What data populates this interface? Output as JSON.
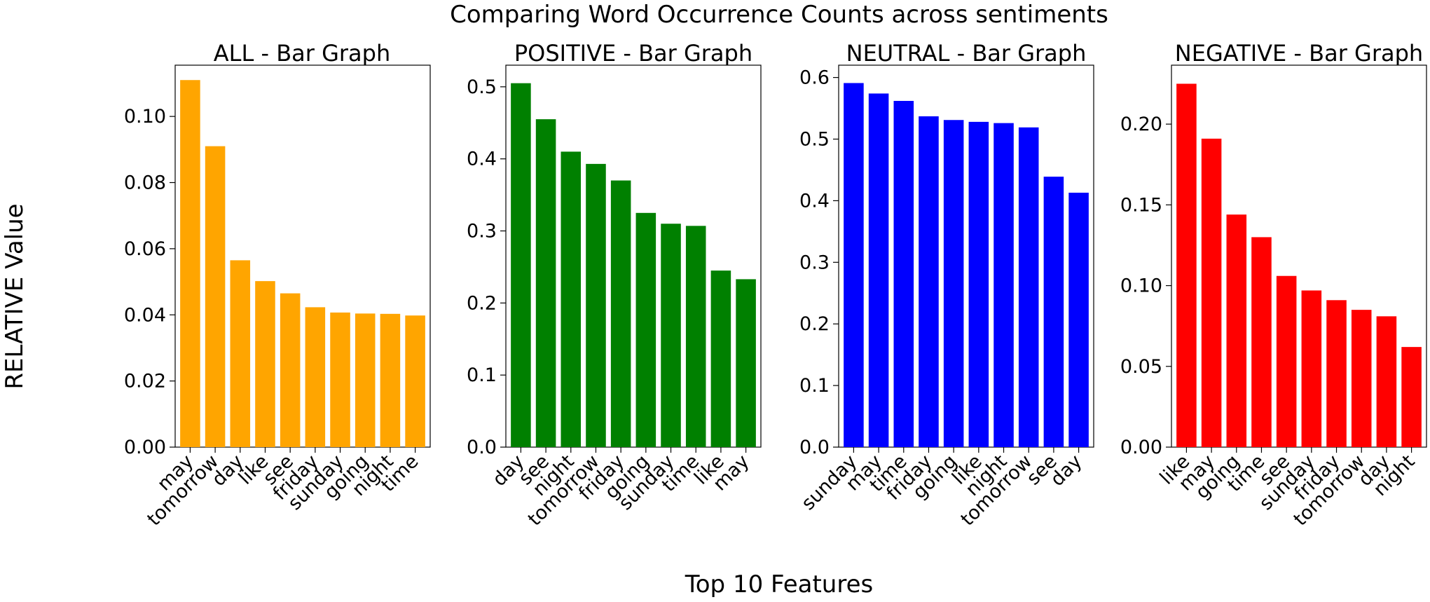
{
  "figure": {
    "suptitle": "Comparing Word Occurrence Counts across sentiments",
    "ylabel": "RELATIVE Value",
    "xlabel": "Top 10 Features"
  },
  "chart_data": [
    {
      "type": "bar",
      "title": "ALL - Bar Graph",
      "color": "#ffa500",
      "categories": [
        "may",
        "tomorrow",
        "day",
        "like",
        "see",
        "friday",
        "sunday",
        "going",
        "night",
        "time"
      ],
      "values": [
        0.111,
        0.091,
        0.0565,
        0.0502,
        0.0465,
        0.0423,
        0.0407,
        0.0404,
        0.0403,
        0.0398
      ],
      "ylim": [
        0,
        0.1155
      ],
      "yticks": [
        0.0,
        0.02,
        0.04,
        0.06,
        0.08,
        0.1
      ],
      "ytick_labels": [
        "0.00",
        "0.02",
        "0.04",
        "0.06",
        "0.08",
        "0.10"
      ]
    },
    {
      "type": "bar",
      "title": "POSITIVE - Bar Graph",
      "color": "#008000",
      "categories": [
        "day",
        "see",
        "night",
        "tomorrow",
        "friday",
        "going",
        "sunday",
        "time",
        "like",
        "may"
      ],
      "values": [
        0.505,
        0.455,
        0.41,
        0.393,
        0.37,
        0.325,
        0.31,
        0.307,
        0.245,
        0.233
      ],
      "ylim": [
        0,
        0.53
      ],
      "yticks": [
        0.0,
        0.1,
        0.2,
        0.3,
        0.4,
        0.5
      ],
      "ytick_labels": [
        "0.0",
        "0.1",
        "0.2",
        "0.3",
        "0.4",
        "0.5"
      ]
    },
    {
      "type": "bar",
      "title": "NEUTRAL - Bar Graph",
      "color": "#0000ff",
      "categories": [
        "sunday",
        "may",
        "time",
        "friday",
        "going",
        "like",
        "night",
        "tomorrow",
        "see",
        "day"
      ],
      "values": [
        0.591,
        0.574,
        0.562,
        0.537,
        0.531,
        0.528,
        0.526,
        0.519,
        0.439,
        0.413
      ],
      "ylim": [
        0,
        0.62
      ],
      "yticks": [
        0.0,
        0.1,
        0.2,
        0.3,
        0.4,
        0.5,
        0.6
      ],
      "ytick_labels": [
        "0.0",
        "0.1",
        "0.2",
        "0.3",
        "0.4",
        "0.5",
        "0.6"
      ]
    },
    {
      "type": "bar",
      "title": "NEGATIVE - Bar Graph",
      "color": "#ff0000",
      "categories": [
        "like",
        "may",
        "going",
        "time",
        "see",
        "sunday",
        "friday",
        "tomorrow",
        "day",
        "night"
      ],
      "values": [
        0.225,
        0.191,
        0.144,
        0.13,
        0.106,
        0.097,
        0.091,
        0.085,
        0.081,
        0.062
      ],
      "ylim": [
        0,
        0.2365
      ],
      "yticks": [
        0.0,
        0.05,
        0.1,
        0.15,
        0.2
      ],
      "ytick_labels": [
        "0.00",
        "0.05",
        "0.10",
        "0.15",
        "0.20"
      ]
    }
  ]
}
